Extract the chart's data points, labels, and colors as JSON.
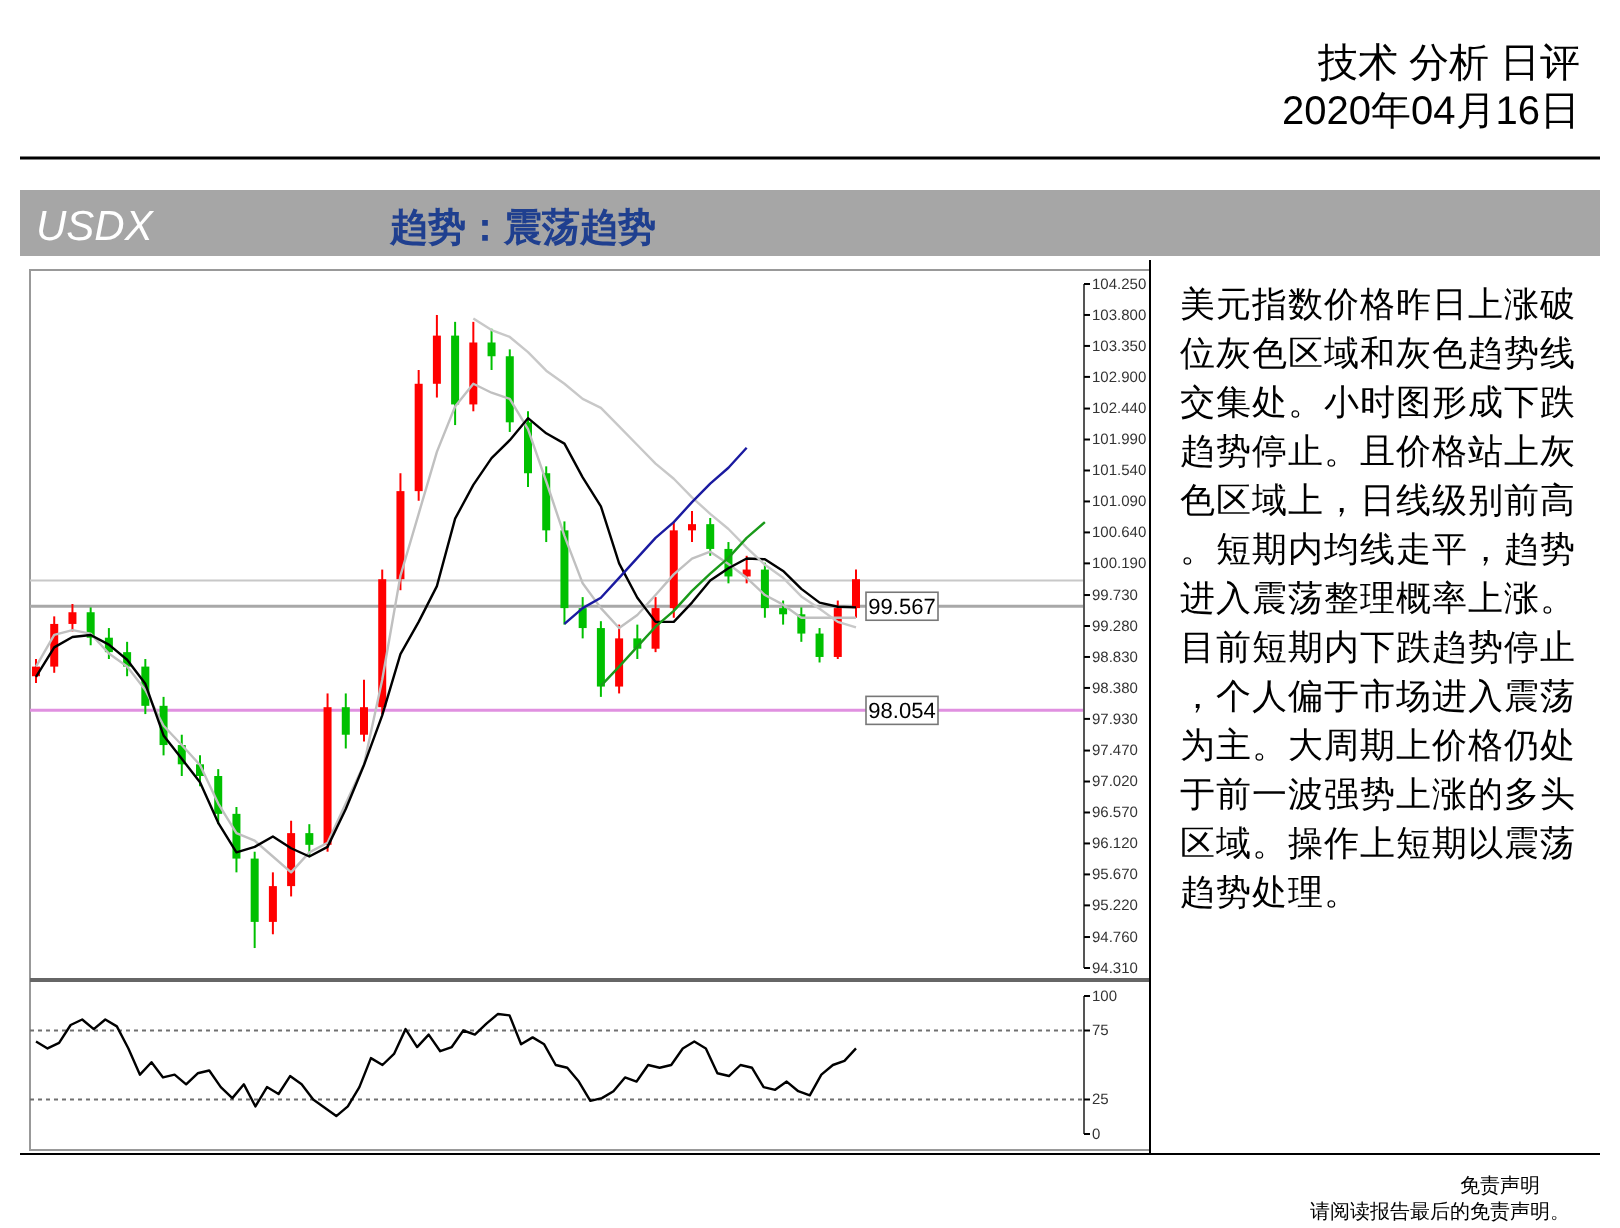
{
  "chart_data": [
    {
      "type": "candlestick",
      "title": "USDX",
      "subtitle": "趋势：震荡趋势",
      "annotations": [
        "技术 分析 日评",
        "2020年04月16日",
        "美元指数价格昨日上涨破位灰色区域和灰色趋势线交集处。小时图形成下跌趋势停止。且价格站上灰色区域上，日线级别前高。短期内均线走平，趋势进入震荡整理概率上涨。目前短期内下跌趋势停止，个人偏于市场进入震荡为主。大周期上价格仍处于前一波强势上涨的多头区域。操作上短期以震荡趋势处理。",
        "免责声明",
        "请阅读报告最后的免责声明。"
      ],
      "categories": [
        null,
        null,
        null,
        null,
        null,
        null,
        null,
        null,
        null,
        null,
        null,
        null,
        null,
        null,
        null,
        null,
        null,
        null,
        null,
        null,
        null,
        null,
        null,
        null,
        null,
        null,
        null,
        null,
        null,
        null,
        null,
        null,
        null,
        null,
        null,
        null,
        null,
        null,
        null,
        null,
        null,
        null,
        null,
        null,
        null,
        null
      ],
      "ohlc": [
        [
          98.55,
          98.8,
          98.45,
          98.69
        ],
        [
          98.69,
          99.42,
          98.6,
          99.31
        ],
        [
          99.31,
          99.6,
          99.2,
          99.48
        ],
        [
          99.48,
          99.55,
          99.0,
          99.11
        ],
        [
          99.11,
          99.25,
          98.8,
          98.9
        ],
        [
          98.9,
          99.05,
          98.55,
          98.69
        ],
        [
          98.69,
          98.8,
          98.0,
          98.12
        ],
        [
          98.12,
          98.25,
          97.4,
          97.55
        ],
        [
          97.55,
          97.7,
          97.1,
          97.27
        ],
        [
          97.27,
          97.4,
          96.95,
          97.1
        ],
        [
          97.1,
          97.2,
          96.4,
          96.55
        ],
        [
          96.55,
          96.65,
          95.7,
          95.9
        ],
        [
          95.9,
          96.0,
          94.6,
          94.98
        ],
        [
          94.98,
          95.7,
          94.8,
          95.5
        ],
        [
          95.5,
          96.45,
          95.35,
          96.27
        ],
        [
          96.27,
          96.4,
          95.95,
          96.1
        ],
        [
          96.1,
          98.3,
          96.0,
          98.1
        ],
        [
          98.1,
          98.3,
          97.5,
          97.7
        ],
        [
          97.7,
          98.5,
          97.6,
          98.1
        ],
        [
          98.1,
          100.1,
          98.0,
          99.96
        ],
        [
          99.96,
          101.5,
          99.8,
          101.24
        ],
        [
          101.24,
          103.0,
          101.1,
          102.8
        ],
        [
          102.8,
          103.8,
          102.6,
          103.5
        ],
        [
          103.5,
          103.7,
          102.2,
          102.5
        ],
        [
          102.5,
          103.7,
          102.4,
          103.4
        ],
        [
          103.4,
          103.6,
          103.0,
          103.2
        ],
        [
          103.2,
          103.3,
          102.1,
          102.24
        ],
        [
          102.24,
          102.4,
          101.3,
          101.5
        ],
        [
          101.5,
          101.6,
          100.5,
          100.67
        ],
        [
          100.67,
          100.8,
          99.3,
          99.54
        ],
        [
          99.54,
          99.7,
          99.1,
          99.25
        ],
        [
          99.25,
          99.35,
          98.25,
          98.4
        ],
        [
          98.4,
          99.3,
          98.3,
          99.1
        ],
        [
          99.1,
          99.3,
          98.8,
          98.95
        ],
        [
          98.95,
          99.7,
          98.9,
          99.54
        ],
        [
          99.54,
          100.8,
          99.4,
          100.67
        ],
        [
          100.67,
          100.95,
          100.5,
          100.76
        ],
        [
          100.76,
          100.85,
          100.3,
          100.4
        ],
        [
          100.4,
          100.5,
          99.9,
          100.0
        ],
        [
          100.0,
          100.3,
          99.9,
          100.1
        ],
        [
          100.1,
          100.2,
          99.4,
          99.54
        ],
        [
          99.54,
          99.65,
          99.3,
          99.45
        ],
        [
          99.45,
          99.55,
          99.05,
          99.17
        ],
        [
          99.17,
          99.25,
          98.75,
          98.83
        ],
        [
          98.83,
          99.65,
          98.8,
          99.54
        ],
        [
          99.54,
          100.1,
          99.4,
          99.96
        ]
      ],
      "colors": [
        "#ff0000",
        "#ff0000",
        "#ff0000",
        "#00c000",
        "#00c000",
        "#00c000",
        "#00c000",
        "#00c000",
        "#00c000",
        "#00c000",
        "#00c000",
        "#00c000",
        "#00c000",
        "#ff0000",
        "#ff0000",
        "#00c000",
        "#ff0000",
        "#00c000",
        "#ff0000",
        "#ff0000",
        "#ff0000",
        "#ff0000",
        "#ff0000",
        "#00c000",
        "#ff0000",
        "#00c000",
        "#00c000",
        "#00c000",
        "#00c000",
        "#00c000",
        "#00c000",
        "#00c000",
        "#ff0000",
        "#00c000",
        "#ff0000",
        "#ff0000",
        "#ff0000",
        "#00c000",
        "#00c000",
        "#ff0000",
        "#00c000",
        "#00c000",
        "#00c000",
        "#00c000",
        "#ff0000",
        "#ff0000"
      ],
      "series": [
        {
          "type": "line",
          "color": "#c0c0c0",
          "values": [
            98.69,
            99.15,
            99.22,
            99.17,
            98.88,
            98.69,
            98.35,
            97.83,
            97.55,
            97.26,
            96.7,
            96.27,
            96.16,
            95.93,
            95.7,
            95.99,
            96.13,
            96.7,
            97.27,
            98.5,
            100.01,
            100.91,
            101.81,
            102.47,
            102.8,
            102.67,
            102.58,
            102.14,
            101.38,
            100.59,
            99.9,
            99.54,
            99.25,
            99.44,
            99.73,
            100.03,
            100.26,
            100.36,
            100.18,
            99.98,
            99.73,
            99.59,
            99.4,
            99.4,
            99.4,
            99.4
          ]
        },
        {
          "type": "line",
          "color": "#000000",
          "values": [
            98.54,
            98.97,
            99.12,
            99.15,
            99.01,
            98.79,
            98.44,
            97.69,
            97.35,
            97.01,
            96.42,
            95.99,
            96.07,
            96.22,
            96.05,
            95.93,
            96.07,
            96.62,
            97.26,
            97.98,
            98.87,
            99.34,
            99.86,
            100.84,
            101.33,
            101.72,
            101.98,
            102.3,
            102.08,
            101.93,
            101.44,
            101.02,
            100.19,
            99.69,
            99.34,
            99.34,
            99.62,
            99.94,
            100.12,
            100.26,
            100.25,
            100.08,
            99.82,
            99.62,
            99.56,
            99.55
          ]
        },
        {
          "type": "line",
          "color": "#c8c8c8",
          "values": [
            null,
            null,
            null,
            null,
            null,
            null,
            null,
            null,
            null,
            null,
            null,
            null,
            null,
            null,
            null,
            null,
            null,
            null,
            null,
            null,
            null,
            null,
            null,
            null,
            103.75,
            103.58,
            103.48,
            103.26,
            102.99,
            102.8,
            102.58,
            102.45,
            102.18,
            101.91,
            101.64,
            101.42,
            101.15,
            100.91,
            100.69,
            100.42,
            100.17,
            99.98,
            99.71,
            99.53,
            99.34,
            99.26
          ]
        },
        {
          "type": "line",
          "color": "#1a1aa0",
          "values": [
            null,
            null,
            null,
            null,
            null,
            null,
            null,
            null,
            null,
            null,
            null,
            null,
            null,
            null,
            null,
            null,
            null,
            null,
            null,
            null,
            null,
            null,
            null,
            null,
            null,
            null,
            null,
            null,
            null,
            99.31,
            99.54,
            99.69,
            99.98,
            100.27,
            100.56,
            100.79,
            101.08,
            101.35,
            101.58,
            101.87,
            null,
            null,
            null,
            null,
            null,
            null
          ]
        },
        {
          "type": "line",
          "color": "#1a9a1a",
          "values": [
            null,
            null,
            null,
            null,
            null,
            null,
            null,
            null,
            null,
            null,
            null,
            null,
            null,
            null,
            null,
            null,
            null,
            null,
            null,
            null,
            null,
            null,
            null,
            null,
            null,
            null,
            null,
            null,
            null,
            null,
            null,
            98.41,
            98.69,
            98.98,
            99.27,
            99.5,
            99.79,
            100.04,
            100.27,
            100.56,
            100.79,
            null,
            null,
            null,
            null,
            null
          ]
        }
      ],
      "ylim": [
        94.31,
        104.25
      ],
      "yticks": [
        {
          "value": 94.31,
          "label": "94.310"
        },
        {
          "value": 94.76,
          "label": "94.760"
        },
        {
          "value": 95.22,
          "label": "95.220"
        },
        {
          "value": 95.67,
          "label": "95.670"
        },
        {
          "value": 96.12,
          "label": "96.120"
        },
        {
          "value": 96.57,
          "label": "96.570"
        },
        {
          "value": 97.02,
          "label": "97.020"
        },
        {
          "value": 97.47,
          "label": "97.470"
        },
        {
          "value": 97.93,
          "label": "97.930"
        },
        {
          "value": 98.38,
          "label": "98.380"
        },
        {
          "value": 98.83,
          "label": "98.830"
        },
        {
          "value": 99.28,
          "label": "99.280"
        },
        {
          "value": 99.73,
          "label": "99.730"
        },
        {
          "value": 100.19,
          "label": "100.190"
        },
        {
          "value": 100.64,
          "label": "100.640"
        },
        {
          "value": 101.09,
          "label": "101.090"
        },
        {
          "value": 101.54,
          "label": "101.540"
        },
        {
          "value": 101.99,
          "label": "101.990"
        },
        {
          "value": 102.44,
          "label": "102.440"
        },
        {
          "value": 102.9,
          "label": "102.900"
        },
        {
          "value": 103.35,
          "label": "103.350"
        },
        {
          "value": 103.8,
          "label": "103.800"
        },
        {
          "value": 104.25,
          "label": "104.250"
        }
      ],
      "ref_lines": [
        {
          "axis": "y",
          "value": 99.94,
          "label": null,
          "color": "#c8c8c8"
        },
        {
          "axis": "y",
          "value": 99.567,
          "label": "99.567",
          "color": "#a8a8a8"
        },
        {
          "axis": "y",
          "value": 98.054,
          "label": "98.054",
          "color": "#e090e0"
        }
      ]
    },
    {
      "type": "line",
      "categories": [
        null,
        null,
        null,
        null,
        null,
        null,
        null,
        null,
        null,
        null,
        null,
        null,
        null,
        null,
        null,
        null,
        null,
        null,
        null,
        null,
        null,
        null,
        null,
        null,
        null,
        null,
        null,
        null,
        null,
        null,
        null,
        null,
        null,
        null,
        null,
        null,
        null,
        null,
        null,
        null,
        null,
        null,
        null,
        null,
        null,
        null,
        null,
        null,
        null,
        null,
        null,
        null,
        null,
        null,
        null,
        null,
        null,
        null,
        null,
        null,
        null,
        null,
        null,
        null,
        null,
        null,
        null,
        null,
        null,
        null,
        null,
        null
      ],
      "series": [
        {
          "color": "#000000",
          "values": [
            67,
            62,
            66,
            79,
            83,
            76,
            83,
            78,
            62,
            43,
            52,
            41,
            43,
            36,
            44,
            46,
            34,
            26,
            36,
            20,
            34,
            29,
            42,
            36,
            25,
            19,
            13,
            20,
            34,
            55,
            50,
            58,
            76,
            63,
            72,
            60,
            63,
            75,
            72,
            80,
            87,
            86,
            65,
            70,
            65,
            50,
            48,
            38,
            24,
            26,
            31,
            41,
            38,
            50,
            48,
            50,
            62,
            67,
            62,
            44,
            42,
            50,
            48,
            34,
            32,
            38,
            31,
            28,
            43,
            50,
            53,
            62
          ]
        }
      ],
      "ylim": [
        0,
        100
      ],
      "yticks": [
        0,
        25,
        75,
        100
      ],
      "ref_lines": [
        {
          "axis": "y",
          "value": 75,
          "color": "#707070",
          "line_style": "dotted"
        },
        {
          "axis": "y",
          "value": 25,
          "color": "#707070",
          "line_style": "dotted"
        }
      ]
    }
  ]
}
